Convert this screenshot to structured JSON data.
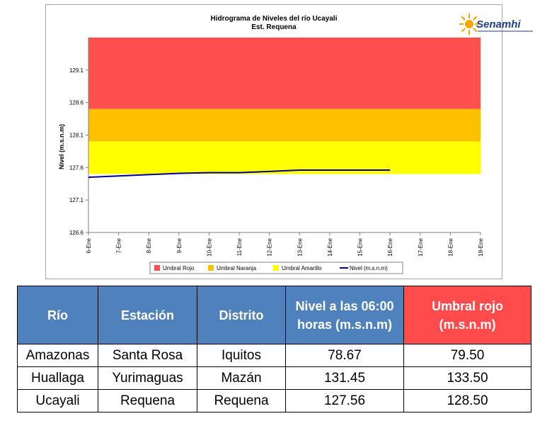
{
  "chart_data": {
    "type": "line",
    "title": "Hidrograma de Niveles del río Ucayali",
    "subtitle": "Est. Requena",
    "ylabel": "Nivel (m.s.n.m)",
    "xlabel": "",
    "ylim": [
      126.6,
      129.6
    ],
    "yticks": [
      "126.6",
      "127.1",
      "127.6",
      "128.1",
      "128.6",
      "129.1"
    ],
    "categories": [
      "6-Ene",
      "7-Ene",
      "8-Ene",
      "9-Ene",
      "10-Ene",
      "11-Ene",
      "12-Ene",
      "13-Ene",
      "14-Ene",
      "15-Ene",
      "16-Ene",
      "17-Ene",
      "18-Ene",
      "19-Ene"
    ],
    "bands": [
      {
        "name": "Umbral Rojo",
        "from": 128.5,
        "to": 129.6,
        "color": "#ff5050"
      },
      {
        "name": "Umbral Naranja",
        "from": 128.0,
        "to": 128.5,
        "color": "#ffc000"
      },
      {
        "name": "Umbral Amarillo",
        "from": 127.5,
        "to": 128.0,
        "color": "#ffff00"
      }
    ],
    "series": [
      {
        "name": "Nivel (m.s.n.m)",
        "color": "#000099",
        "values": [
          127.45,
          127.47,
          127.49,
          127.51,
          127.52,
          127.52,
          127.54,
          127.56,
          127.56,
          127.56,
          127.56,
          null,
          null,
          null
        ]
      }
    ],
    "legend_position": "bottom",
    "grid": false
  },
  "logo": {
    "text": "Senamhi"
  },
  "table": {
    "headers": [
      "Río",
      "Estación",
      "Distrito",
      "Nivel a las 06:00 horas (m.s.n.m)",
      "Umbral rojo (m.s.n.m)"
    ],
    "rows": [
      [
        "Amazonas",
        "Santa Rosa",
        "Iquitos",
        "78.67",
        "79.50"
      ],
      [
        "Huallaga",
        "Yurimaguas",
        "Mazán",
        "131.45",
        "133.50"
      ],
      [
        "Ucayali",
        "Requena",
        "Requena",
        "127.56",
        "128.50"
      ]
    ],
    "header_color": "#4f81bd",
    "highlight_header_color": "#ff4b4b"
  }
}
